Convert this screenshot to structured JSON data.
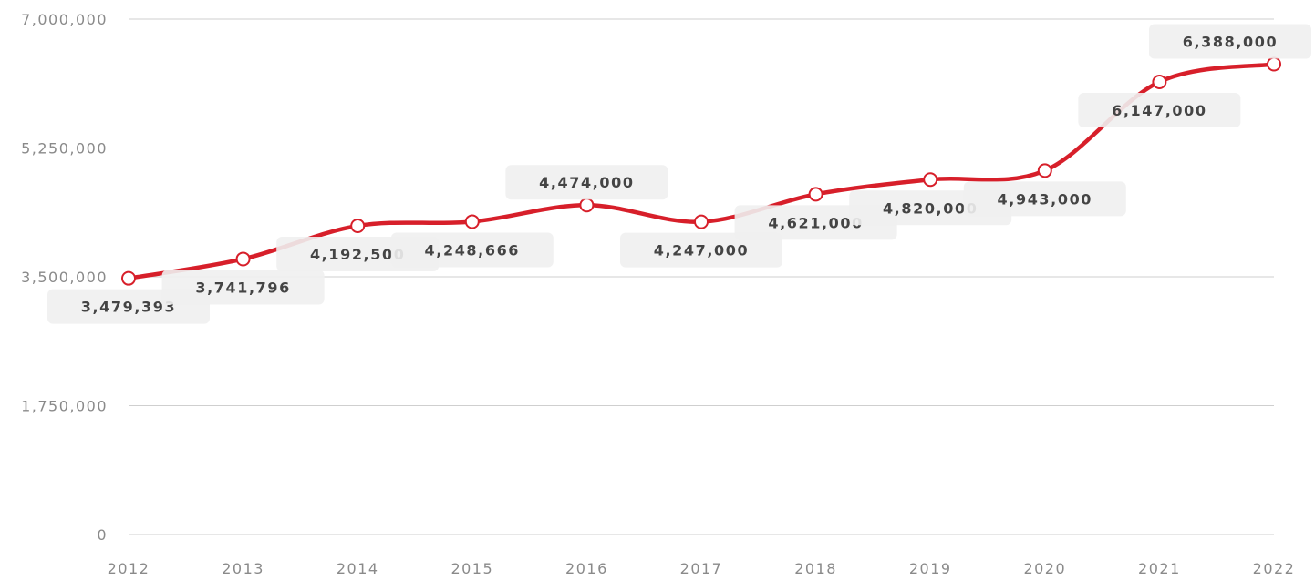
{
  "chart_data": {
    "type": "line",
    "x": [
      "2012",
      "2013",
      "2014",
      "2015",
      "2016",
      "2017",
      "2018",
      "2019",
      "2020",
      "2021",
      "2022"
    ],
    "series": [
      {
        "values": [
          3479393,
          3741796,
          4192500,
          4248666,
          4474000,
          4247000,
          4621000,
          4820000,
          4943000,
          6147000,
          6388000
        ],
        "labels": [
          "3,479,393",
          "3,741,796",
          "4,192,500",
          "4,248,666",
          "4,474,000",
          "4,247,000",
          "4,621,000",
          "4,820,000",
          "4,943,000",
          "6,147,000",
          "6,388,000"
        ],
        "color": "#d71f2a"
      }
    ],
    "y_ticks": [
      0,
      1750000,
      3500000,
      5250000,
      7000000
    ],
    "y_tick_labels": [
      "0",
      "1,750,000",
      "3,500,000",
      "5,250,000",
      "7,000,000"
    ],
    "ylim": [
      0,
      7000000
    ],
    "grid": true,
    "legend": "none",
    "label_position": [
      "below",
      "below",
      "below",
      "below",
      "above",
      "below",
      "below",
      "below",
      "below",
      "below",
      "above"
    ]
  }
}
